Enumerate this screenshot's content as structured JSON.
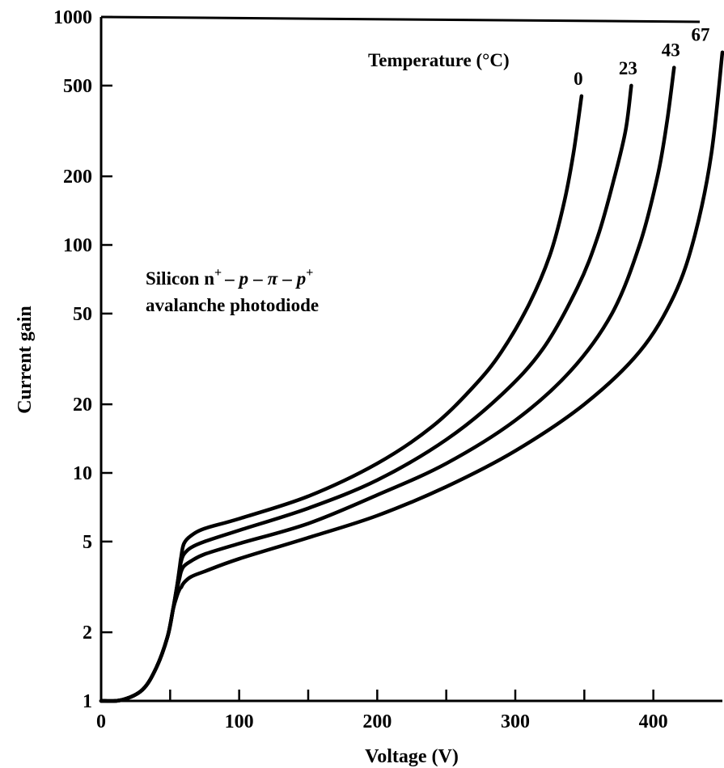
{
  "chart_data": {
    "type": "line",
    "xlabel": "Voltage (V)",
    "ylabel": "Current gain",
    "xlim": [
      0,
      450
    ],
    "ylim": [
      1,
      1000
    ],
    "y_scale": "log",
    "grid": false,
    "x_ticks": [
      0,
      100,
      200,
      300,
      400
    ],
    "x_minor_ticks": [
      50,
      150,
      250,
      350
    ],
    "y_ticks": [
      1,
      2,
      5,
      10,
      20,
      50,
      100,
      200,
      500,
      1000
    ],
    "legend_title": "Temperature (°C)",
    "annotation_line1": "Silicon n",
    "annotation_line2": "avalanche photodiode",
    "series": [
      {
        "name": "0",
        "x": [
          0,
          15,
          30,
          40,
          48,
          52,
          55,
          57,
          58,
          60,
          65,
          75,
          100,
          150,
          200,
          240,
          270,
          290,
          310,
          325,
          335,
          342,
          348
        ],
        "y": [
          1,
          1.01,
          1.12,
          1.4,
          1.9,
          2.5,
          3.2,
          3.9,
          4.3,
          4.9,
          5.3,
          5.7,
          6.3,
          7.9,
          11,
          16,
          24,
          34,
          55,
          90,
          150,
          250,
          450
        ]
      },
      {
        "name": "23",
        "x": [
          0,
          15,
          30,
          40,
          48,
          52,
          55,
          57,
          58,
          60,
          65,
          75,
          100,
          150,
          200,
          250,
          290,
          320,
          345,
          360,
          372,
          380,
          384
        ],
        "y": [
          1,
          1.01,
          1.12,
          1.4,
          1.9,
          2.5,
          3.2,
          3.8,
          4.1,
          4.4,
          4.7,
          5.0,
          5.6,
          7.0,
          9.3,
          14,
          22,
          35,
          65,
          110,
          200,
          320,
          500
        ]
      },
      {
        "name": "43",
        "x": [
          0,
          15,
          30,
          40,
          48,
          52,
          55,
          57,
          58,
          60,
          65,
          75,
          100,
          150,
          200,
          250,
          300,
          340,
          370,
          390,
          403,
          410,
          415
        ],
        "y": [
          1,
          1.01,
          1.12,
          1.4,
          1.9,
          2.5,
          3.1,
          3.5,
          3.7,
          3.9,
          4.1,
          4.4,
          4.9,
          6.0,
          8.0,
          11,
          17,
          28,
          50,
          100,
          200,
          350,
          600
        ]
      },
      {
        "name": "67",
        "x": [
          0,
          15,
          30,
          40,
          48,
          52,
          55,
          57,
          58,
          60,
          65,
          75,
          100,
          150,
          200,
          250,
          300,
          350,
          390,
          415,
          430,
          442,
          450
        ],
        "y": [
          1,
          1.01,
          1.12,
          1.4,
          1.9,
          2.5,
          2.9,
          3.1,
          3.15,
          3.3,
          3.5,
          3.7,
          4.2,
          5.2,
          6.5,
          8.7,
          12.5,
          20,
          34,
          60,
          110,
          250,
          700
        ]
      }
    ]
  }
}
